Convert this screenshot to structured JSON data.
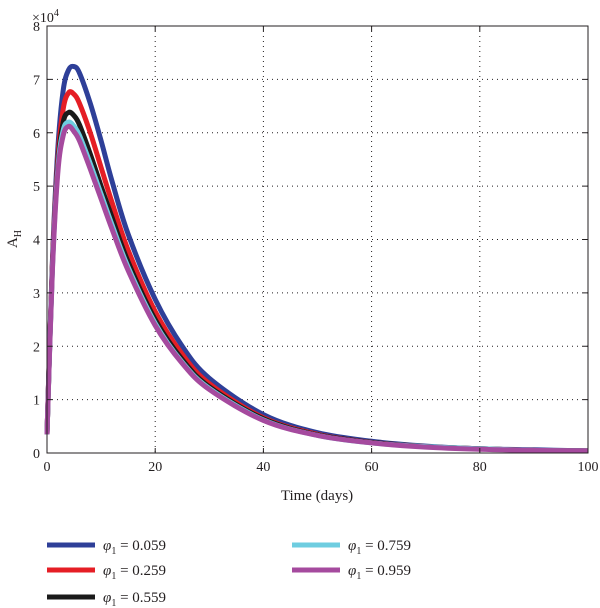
{
  "chart_data": {
    "type": "line",
    "xlabel": "Time (days)",
    "ylabel": "A",
    "ylabel_subscript": "H",
    "y_multiplier": "×10",
    "y_multiplier_exp": "4",
    "xlim": [
      0,
      100
    ],
    "ylim": [
      0,
      8
    ],
    "x_ticks": [
      "0",
      "20",
      "40",
      "60",
      "80",
      "100"
    ],
    "y_ticks": [
      "0",
      "1",
      "2",
      "3",
      "4",
      "5",
      "6",
      "7",
      "8"
    ],
    "grid": true,
    "legend_position": "bottom",
    "x": [
      0,
      1,
      2,
      3,
      4,
      5,
      6,
      8,
      10,
      12,
      15,
      20,
      25,
      30,
      40,
      50,
      60,
      70,
      80,
      90,
      100
    ],
    "series": [
      {
        "name": "0.059",
        "color": "#2e3f98",
        "values": [
          0.35,
          3.6,
          5.7,
          6.8,
          7.18,
          7.24,
          7.12,
          6.55,
          5.85,
          5.1,
          4.1,
          2.88,
          2.0,
          1.4,
          0.72,
          0.38,
          0.22,
          0.13,
          0.08,
          0.06,
          0.04
        ]
      },
      {
        "name": "0.259",
        "color": "#e51e25",
        "values": [
          0.35,
          3.55,
          5.5,
          6.45,
          6.75,
          6.72,
          6.55,
          6.0,
          5.35,
          4.7,
          3.8,
          2.65,
          1.85,
          1.3,
          0.66,
          0.35,
          0.2,
          0.12,
          0.08,
          0.05,
          0.04
        ]
      },
      {
        "name": "0.559",
        "color": "#1a1a1a",
        "values": [
          0.35,
          3.5,
          5.4,
          6.2,
          6.38,
          6.32,
          6.15,
          5.6,
          5.0,
          4.42,
          3.58,
          2.5,
          1.75,
          1.24,
          0.64,
          0.34,
          0.2,
          0.12,
          0.08,
          0.05,
          0.04
        ]
      },
      {
        "name": "0.759",
        "color": "#6ecde0",
        "values": [
          0.35,
          3.45,
          5.32,
          6.05,
          6.2,
          6.12,
          5.95,
          5.42,
          4.85,
          4.28,
          3.48,
          2.43,
          1.7,
          1.21,
          0.62,
          0.33,
          0.19,
          0.12,
          0.08,
          0.05,
          0.04
        ]
      },
      {
        "name": "0.959",
        "color": "#a54a9e",
        "values": [
          0.35,
          3.42,
          5.25,
          5.95,
          6.12,
          6.02,
          5.85,
          5.32,
          4.76,
          4.2,
          3.42,
          2.39,
          1.68,
          1.19,
          0.61,
          0.33,
          0.19,
          0.11,
          0.07,
          0.05,
          0.04
        ]
      }
    ],
    "legend_symbol": "φ",
    "legend_subscript": "1",
    "legend_equals": " = "
  }
}
